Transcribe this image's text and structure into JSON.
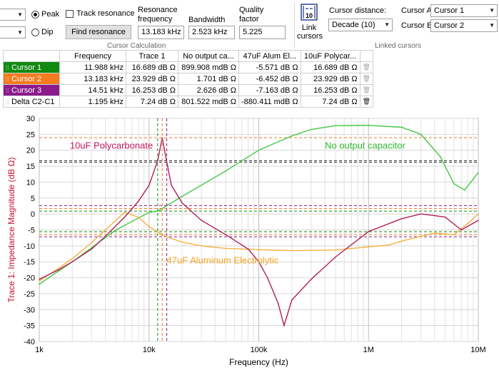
{
  "toolbar": {
    "peak_label": "Peak",
    "dip_label": "Dip",
    "track_resonance_label": "Track resonance",
    "find_resonance_label": "Find resonance",
    "resonance_frequency_label": "Resonance frequency",
    "resonance_frequency_value": "13.183 kHz",
    "bandwidth_label": "Bandwidth",
    "bandwidth_value": "2.523 kHz",
    "quality_factor_label": "Quality factor",
    "quality_factor_value": "5.225",
    "cursor_calculation_label": "Cursor Calculation",
    "link_cursors_label": "Link cursors",
    "link_icon_text": "10",
    "cursor_distance_label": "Cursor distance:",
    "cursor_distance_value": "Decade (10)",
    "cursor_a_label": "Cursor A",
    "cursor_a_value": "Cursor 1",
    "cursor_b_label": "Cursor B",
    "cursor_b_value": "Cursor 2",
    "linked_cursors_label": "Linked cursors"
  },
  "table": {
    "headers": [
      "",
      "Frequency",
      "Trace 1",
      "No output ca...",
      "47uF Alum El...",
      "10uF Polycar..."
    ],
    "rows": [
      {
        "name": "Cursor 1",
        "color": "#118a11",
        "cells": [
          "11.988 kHz",
          "16.689 dB Ω",
          "899.908 mdB Ω",
          "-5.571 dB Ω",
          "16.689 dB Ω"
        ]
      },
      {
        "name": "Cursor 2",
        "color": "#f47b20",
        "cells": [
          "13.183 kHz",
          "23.929 dB Ω",
          "1.701 dB Ω",
          "-6.452 dB Ω",
          "23.929 dB Ω"
        ]
      },
      {
        "name": "Cursor 3",
        "color": "#8b1a8b",
        "cells": [
          "14.51 kHz",
          "16.253 dB Ω",
          "2.626 dB Ω",
          "-7.163 dB Ω",
          "16.253 dB Ω"
        ]
      },
      {
        "name": "Delta C2-C1",
        "color": "",
        "cells": [
          "1.195 kHz",
          "7.24 dB Ω",
          "801.522 mdB Ω",
          "-880.411 mdB Ω",
          "7.24 dB Ω"
        ]
      }
    ]
  },
  "chart_data": {
    "type": "line",
    "xlabel": "Frequency (Hz)",
    "ylabel": "Trace 1: Impedance Magnitude (dB Ω)",
    "x_scale": "log",
    "xlim": [
      1000,
      10000000
    ],
    "ylim": [
      -40,
      30
    ],
    "x_ticks": [
      1000,
      10000,
      100000,
      1000000,
      10000000
    ],
    "x_tick_labels": [
      "1k",
      "10k",
      "100k",
      "1M",
      "10M"
    ],
    "y_ticks": [
      30,
      25,
      20,
      15,
      10,
      5,
      0,
      -5,
      -10,
      -15,
      -20,
      -25,
      -30,
      -35,
      -40
    ],
    "grid": true,
    "annotations": [
      {
        "text": "10uF Polycarbonate",
        "color": "#c0185a"
      },
      {
        "text": "No output capacitor",
        "color": "#2eb82e"
      },
      {
        "text": "47uF Aluminum Electrolytic",
        "color": "#f5a623"
      }
    ],
    "series": [
      {
        "name": "No output capacitor",
        "color": "#44c844",
        "x": [
          1000,
          2000,
          5000,
          10000,
          12000,
          13183,
          14510,
          20000,
          50000,
          100000,
          200000,
          300000,
          500000,
          1000000,
          2000000,
          3000000,
          4500000,
          6000000,
          7500000,
          10000000
        ],
        "y": [
          -22,
          -15,
          -5,
          0.5,
          0.9,
          1.7,
          2.6,
          5.5,
          13.5,
          20,
          24.5,
          26.5,
          27.7,
          27.8,
          27.2,
          25,
          18,
          9.5,
          7.5,
          13
        ]
      },
      {
        "name": "47uF Aluminum Electrolytic",
        "color": "#f5b041",
        "x": [
          1000,
          1500,
          2000,
          3000,
          4000,
          6000,
          8000,
          10000,
          11988,
          13183,
          14510,
          20000,
          30000,
          50000,
          100000,
          200000,
          500000,
          1000000,
          1500000,
          2000000,
          3000000,
          4000000,
          6000000,
          8000000,
          10000000
        ],
        "y": [
          -21,
          -17,
          -14,
          -9,
          -5,
          0.5,
          -1,
          -4,
          -5.6,
          -6.5,
          -7.2,
          -8.8,
          -10,
          -10.8,
          -11.2,
          -11.5,
          -11.3,
          -10.3,
          -9.8,
          -8.5,
          -7,
          -6,
          -6.5,
          -3,
          0
        ]
      },
      {
        "name": "10uF Polycarbonate",
        "color": "#b0205a",
        "x": [
          1000,
          1500,
          2000,
          3000,
          4000,
          6000,
          8000,
          10000,
          11988,
          13183,
          14510,
          16000,
          20000,
          30000,
          50000,
          80000,
          100000,
          120000,
          150000,
          170000,
          200000,
          300000,
          500000,
          1000000,
          2000000,
          3000000,
          4000000,
          5000000,
          7000000,
          10000000
        ],
        "y": [
          -20.5,
          -17.5,
          -15,
          -11,
          -7,
          -1,
          4,
          9,
          16.7,
          23.9,
          16.3,
          9,
          3.5,
          -2,
          -6.5,
          -11,
          -15,
          -20,
          -28,
          -35,
          -27,
          -20.5,
          -13.5,
          -5.5,
          -1.5,
          0,
          -0.5,
          -1,
          -5,
          -2
        ]
      }
    ],
    "cursors": [
      {
        "name": "Cursor 1",
        "x": 11988,
        "color": "#118a11"
      },
      {
        "name": "Cursor 2",
        "x": 13183,
        "color": "#f47b20"
      },
      {
        "name": "Cursor 3",
        "x": 14510,
        "color": "#8b1a8b"
      }
    ],
    "levels": [
      {
        "y": 23.929,
        "color": "#f47b20"
      },
      {
        "y": 16.689,
        "color": "#333333"
      },
      {
        "y": 16.253,
        "color": "#333333"
      },
      {
        "y": 2.626,
        "color": "#8b1a8b"
      },
      {
        "y": 1.701,
        "color": "#f47b20"
      },
      {
        "y": 0.9,
        "color": "#118a11"
      },
      {
        "y": -5.571,
        "color": "#118a11"
      },
      {
        "y": -6.452,
        "color": "#f47b20"
      },
      {
        "y": -7.163,
        "color": "#8b1a8b"
      }
    ]
  }
}
